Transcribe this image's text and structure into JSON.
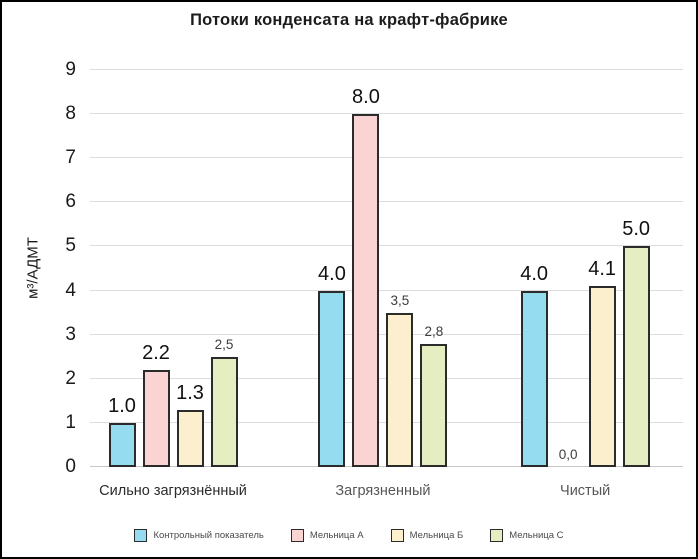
{
  "chart_data": {
    "type": "bar",
    "title": "Потоки конденсата на крафт-фабрике",
    "xlabel": "",
    "ylabel": "м³/АДМТ",
    "ylim": [
      0,
      9
    ],
    "ytick_step": 1,
    "grid": true,
    "legend_position": "bottom",
    "categories": [
      "Сильно загрязнённый",
      "Загрязненный",
      "Чистый"
    ],
    "series": [
      {
        "name": "Контрольный показатель",
        "color": "#96dcf1",
        "values": [
          1.0,
          4.0,
          4.0
        ],
        "value_labels": [
          "1.0",
          "4.0",
          "4.0"
        ],
        "label_sizes": [
          "lg",
          "lg",
          "lg"
        ]
      },
      {
        "name": "Мельница А",
        "color": "#f9d4d2",
        "values": [
          2.2,
          8.0,
          0.0
        ],
        "value_labels": [
          "2.2",
          "8.0",
          "0,0"
        ],
        "label_sizes": [
          "lg",
          "lg",
          "sm"
        ]
      },
      {
        "name": "Мельница Б",
        "color": "#fcefce",
        "values": [
          1.3,
          3.5,
          4.1
        ],
        "value_labels": [
          "1.3",
          "3,5",
          "4.1"
        ],
        "label_sizes": [
          "lg",
          "sm",
          "lg"
        ]
      },
      {
        "name": "Мельница С",
        "color": "#e4eec1",
        "values": [
          2.5,
          2.8,
          5.0
        ],
        "value_labels": [
          "2,5",
          "2,8",
          "5.0"
        ],
        "label_sizes": [
          "sm",
          "sm",
          "lg"
        ]
      }
    ],
    "bar_border_color": "#2b2b2b",
    "grid_color": "#dcdcdc"
  }
}
